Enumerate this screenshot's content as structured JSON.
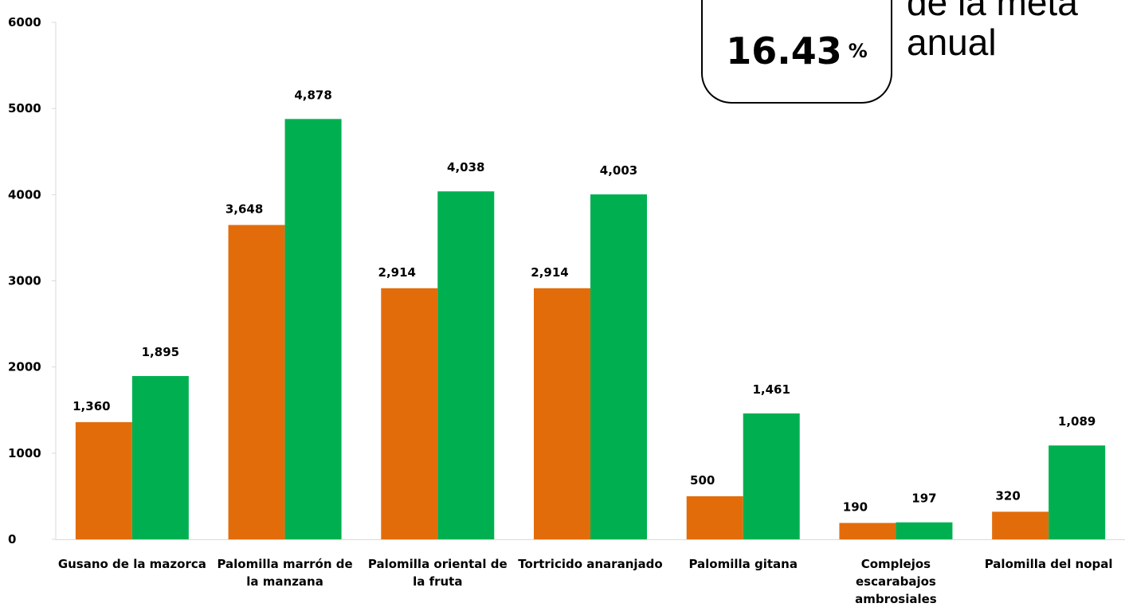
{
  "callout": {
    "value": "16.43",
    "unit": "%",
    "text_line1": "de la meta",
    "text_line2": "anual"
  },
  "chart_data": {
    "type": "bar",
    "categories": [
      [
        "Gusano de la mazorca"
      ],
      [
        "Palomilla marrón de",
        "la manzana"
      ],
      [
        "Palomilla oriental de",
        "la fruta"
      ],
      [
        "Tortricido anaranjado"
      ],
      [
        "Palomilla gitana"
      ],
      [
        "Complejos",
        "escarabajos",
        "ambrosiales"
      ],
      [
        "Palomilla del nopal"
      ]
    ],
    "series": [
      {
        "values": [
          1360,
          3648,
          2914,
          2914,
          500,
          190,
          320
        ],
        "labels": [
          "1,360",
          "3,648",
          "2,914",
          "2,914",
          "500",
          "190",
          "320"
        ],
        "color": "#e36c0a"
      },
      {
        "values": [
          1895,
          4878,
          4038,
          4003,
          1461,
          197,
          1089
        ],
        "labels": [
          "1,895",
          "4,878",
          "4,038",
          "4,003",
          "1,461",
          "197",
          "1,089"
        ],
        "color": "#00b050"
      }
    ],
    "ylim": [
      0,
      6000
    ],
    "yticks": [
      "0",
      "1000",
      "2000",
      "3000",
      "4000",
      "5000",
      "6000"
    ],
    "grid": false,
    "legend": "none"
  }
}
